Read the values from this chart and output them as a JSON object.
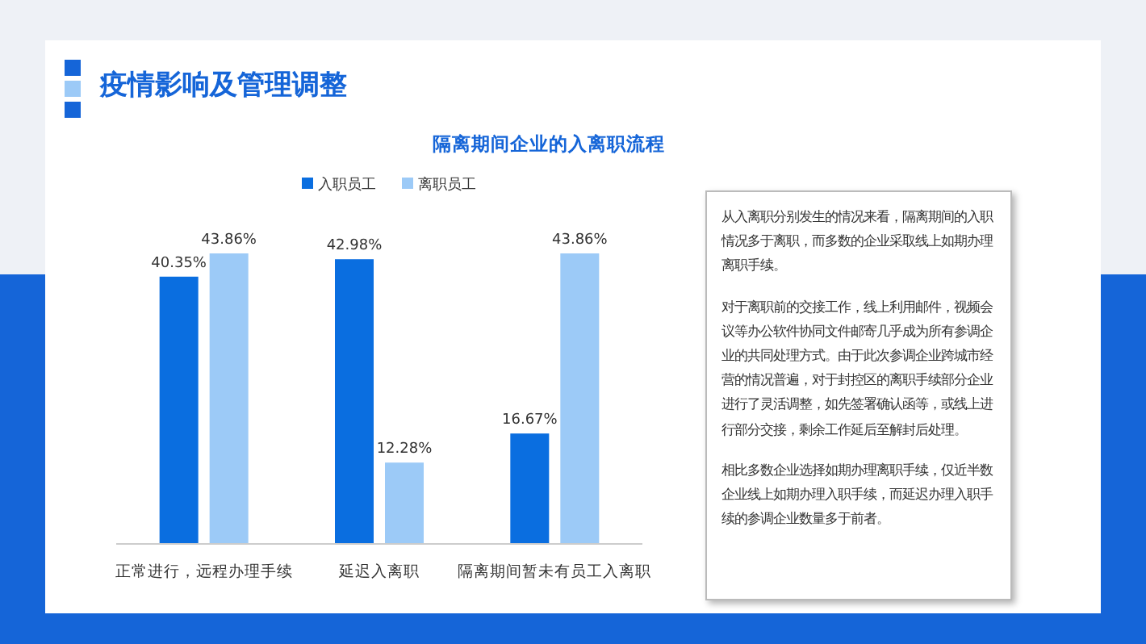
{
  "chart_data": {
    "type": "bar",
    "title": "疫情影响及管理调整",
    "subtitle": "隔离期间企业的入离职流程",
    "categories": [
      "正常进行，远程办理手续",
      "延迟入离职",
      "隔离期间暂未有员工入离职"
    ],
    "series": [
      {
        "name": "入职员工",
        "color": "#0a6ee0",
        "values": [
          40.35,
          42.98,
          16.67
        ],
        "value_labels": [
          "40.35%",
          "42.98%",
          "16.67%"
        ]
      },
      {
        "name": "离职员工",
        "color": "#9ccaf7",
        "values": [
          43.86,
          12.28,
          43.86
        ],
        "value_labels": [
          "43.86%",
          "12.28%",
          "43.86%"
        ]
      }
    ],
    "legend": "top",
    "annotations": [
      "从入离职分别发生的情况来看，隔离期间的入职情况多于离职，而多数的企业采取线上如期办理离职手续。",
      "对于离职前的交接工作，线上利用邮件，视频会议等办公软件协同文件邮寄几乎成为所有参调企业的共同处理方式。由于此次参调企业跨城市经营的情况普遍，对于封控区的离职手续部分企业进行了灵活调整，如先签署确认函等，或线上进行部分交接，剩余工作延后至解封后处理。",
      "相比多数企业选择如期办理离职手续，仅近半数企业线上如期办理入职手续，而延迟办理入职手续的参调企业数量多于前者。"
    ]
  }
}
